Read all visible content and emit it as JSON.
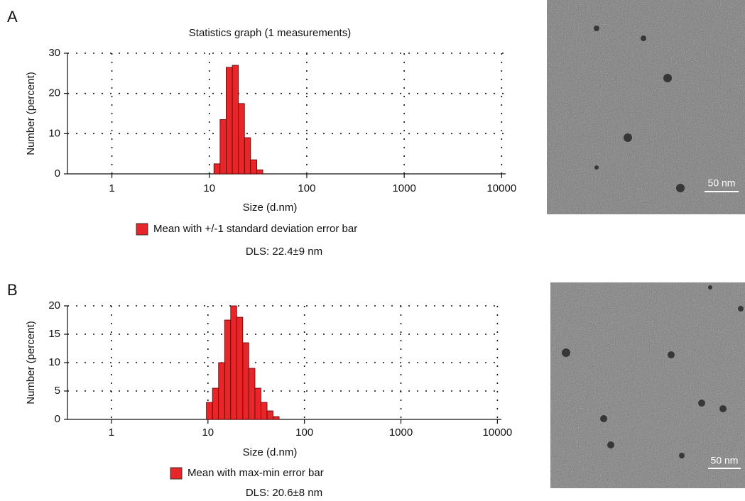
{
  "chart_data": [
    {
      "type": "histogram",
      "panel": "A",
      "title": "Statistics graph (1 measurements)",
      "xlabel": "Size (d.nm)",
      "ylabel": "Number (percent)",
      "log_x": true,
      "grid": true,
      "xlim": [
        0.35,
        11000
      ],
      "xticks": [
        1,
        10,
        100,
        1000,
        10000
      ],
      "ylim": [
        0,
        30
      ],
      "yticks": [
        0,
        10,
        20,
        30
      ],
      "bins": [
        11.14,
        12.88,
        14.88,
        17.2,
        19.87,
        22.96,
        26.5,
        30.7,
        35.4
      ],
      "series": [
        {
          "name": "Mean with +/-1 standard deviation error bar",
          "color": "#e8262a",
          "values": [
            2.5,
            13.5,
            26.5,
            27,
            17.5,
            9,
            3.5,
            1
          ]
        }
      ],
      "annotation": "DLS: 22.4±9 nm",
      "scale_bar": "50 nm"
    },
    {
      "type": "histogram",
      "panel": "B",
      "xlabel": "Size (d.nm)",
      "ylabel": "Number (percent)",
      "log_x": true,
      "grid": true,
      "xlim": [
        0.35,
        11000
      ],
      "xticks": [
        1,
        10,
        100,
        1000,
        10000
      ],
      "ylim": [
        0,
        20
      ],
      "yticks": [
        0,
        5,
        10,
        15,
        20
      ],
      "bins": [
        9.64,
        11.14,
        12.88,
        14.88,
        17.2,
        19.87,
        22.96,
        26.5,
        30.7,
        35.4,
        41,
        47.3,
        54.7
      ],
      "series": [
        {
          "name": "Mean with max-min  error bar",
          "color": "#e8262a",
          "values": [
            3,
            5.5,
            10,
            17.5,
            20,
            18,
            13.5,
            9,
            5.5,
            3,
            1.5,
            0.5
          ]
        }
      ],
      "annotation": "DLS: 20.6±8 nm",
      "scale_bar": "50 nm"
    }
  ]
}
